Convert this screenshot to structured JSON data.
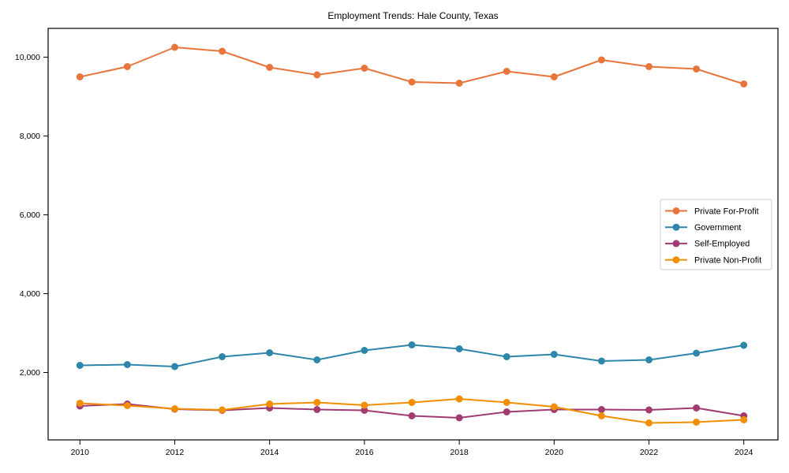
{
  "figure": {
    "background": "#ffffff",
    "spine_color": "#000000",
    "text_color": "#000000",
    "legend_border_color": "#cccccc",
    "legend_background": "#ffffff"
  },
  "chart_data": {
    "type": "line",
    "title": "Employment Trends: Hale County, Texas",
    "xlabel": "",
    "ylabel": "",
    "grid": false,
    "legend_position": "center right",
    "x": [
      2010,
      2011,
      2012,
      2013,
      2014,
      2015,
      2016,
      2017,
      2018,
      2019,
      2020,
      2021,
      2022,
      2023,
      2024
    ],
    "x_ticks": [
      2010,
      2012,
      2014,
      2016,
      2018,
      2020,
      2022,
      2024
    ],
    "x_tick_labels": [
      "2010",
      "2012",
      "2014",
      "2016",
      "2018",
      "2020",
      "2022",
      "2024"
    ],
    "y_ticks": [
      2000,
      4000,
      6000,
      8000,
      10000
    ],
    "y_tick_labels": [
      "2,000",
      "4,000",
      "6,000",
      "8,000",
      "10,000"
    ],
    "xlim": [
      2009.33,
      2024.72
    ],
    "ylim": [
      290,
      10730
    ],
    "series": [
      {
        "name": "Private For-Profit",
        "color": "#E8763C",
        "values": [
          9500,
          9760,
          10250,
          10150,
          9740,
          9550,
          9720,
          9370,
          9340,
          9640,
          9500,
          9930,
          9760,
          9700,
          9320
        ]
      },
      {
        "name": "Government",
        "color": "#2E86AB",
        "values": [
          2180,
          2200,
          2150,
          2400,
          2500,
          2320,
          2560,
          2700,
          2600,
          2400,
          2460,
          2290,
          2320,
          2490,
          2690
        ]
      },
      {
        "name": "Self-Employed",
        "color": "#A23B72",
        "values": [
          1150,
          1200,
          1070,
          1040,
          1100,
          1060,
          1040,
          900,
          850,
          1000,
          1060,
          1060,
          1050,
          1100,
          900
        ]
      },
      {
        "name": "Private Non-Profit",
        "color": "#F18F01",
        "values": [
          1220,
          1160,
          1080,
          1050,
          1200,
          1240,
          1170,
          1240,
          1330,
          1240,
          1130,
          900,
          720,
          740,
          800
        ]
      }
    ]
  }
}
